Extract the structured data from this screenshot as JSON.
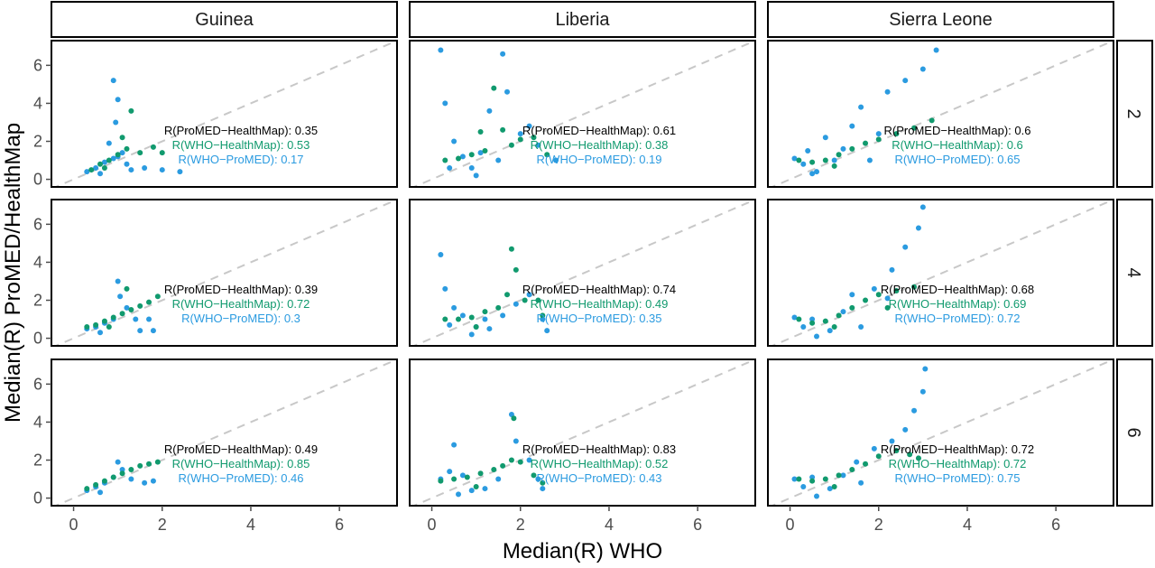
{
  "colors": {
    "who_promed": "#2b9be0",
    "who_healthmap": "#119a6e",
    "promed_healthmap": "#000000",
    "identity": "#c8c8c8",
    "panel_border": "#000000",
    "tick": "#4d4d4d"
  },
  "chart_data": {
    "type": "scatter",
    "title": "",
    "xlabel": "Median(R) WHO",
    "ylabel": "Median(R) ProMED/HealthMap",
    "xlim": [
      -0.5,
      7.3
    ],
    "ylim": [
      -0.4,
      7.3
    ],
    "xticks": [
      0,
      2,
      4,
      6
    ],
    "yticks": [
      0,
      2,
      4,
      6
    ],
    "grid": false,
    "reference_line": "y = x (dashed)",
    "columns": [
      "Guinea",
      "Liberia",
      "Sierra Leone"
    ],
    "rows": [
      "2",
      "4",
      "6"
    ],
    "panels": [
      {
        "country": "Guinea",
        "window": "2",
        "r_promed_healthmap": "0.35",
        "r_who_healthmap": "0.53",
        "r_who_promed": "0.17",
        "points_blue": [
          [
            0.3,
            0.4
          ],
          [
            0.5,
            0.6
          ],
          [
            0.7,
            0.9
          ],
          [
            0.9,
            1.1
          ],
          [
            1.0,
            1.2
          ],
          [
            1.1,
            1.4
          ],
          [
            0.9,
            5.2
          ],
          [
            0.95,
            3.0
          ],
          [
            1.2,
            0.8
          ],
          [
            1.6,
            0.6
          ],
          [
            2.0,
            0.5
          ],
          [
            2.4,
            0.4
          ],
          [
            0.6,
            0.3
          ],
          [
            1.3,
            0.5
          ],
          [
            0.8,
            1.9
          ],
          [
            1.0,
            4.2
          ]
        ],
        "points_green": [
          [
            0.4,
            0.5
          ],
          [
            0.6,
            0.8
          ],
          [
            0.8,
            1.0
          ],
          [
            1.0,
            1.3
          ],
          [
            1.2,
            1.6
          ],
          [
            1.3,
            3.6
          ],
          [
            1.5,
            1.4
          ],
          [
            1.8,
            1.7
          ],
          [
            2.0,
            1.4
          ],
          [
            0.7,
            0.6
          ],
          [
            1.1,
            2.2
          ]
        ]
      },
      {
        "country": "Liberia",
        "window": "2",
        "r_promed_healthmap": "0.61",
        "r_who_healthmap": "0.38",
        "r_who_promed": "0.19",
        "points_blue": [
          [
            0.2,
            6.8
          ],
          [
            0.3,
            4.0
          ],
          [
            0.5,
            2.0
          ],
          [
            0.7,
            1.2
          ],
          [
            0.9,
            0.6
          ],
          [
            1.1,
            1.4
          ],
          [
            1.3,
            3.6
          ],
          [
            1.6,
            6.6
          ],
          [
            1.7,
            4.6
          ],
          [
            2.0,
            2.4
          ],
          [
            2.4,
            1.8
          ],
          [
            2.8,
            1.0
          ],
          [
            0.4,
            0.6
          ],
          [
            1.0,
            0.2
          ],
          [
            1.5,
            1.0
          ],
          [
            2.2,
            2.8
          ]
        ],
        "points_green": [
          [
            0.3,
            1.0
          ],
          [
            0.6,
            1.1
          ],
          [
            0.9,
            1.3
          ],
          [
            1.2,
            1.5
          ],
          [
            1.4,
            4.8
          ],
          [
            1.6,
            2.6
          ],
          [
            1.8,
            1.8
          ],
          [
            2.0,
            2.1
          ],
          [
            2.3,
            2.2
          ],
          [
            2.6,
            1.3
          ],
          [
            1.1,
            2.5
          ]
        ]
      },
      {
        "country": "Sierra Leone",
        "window": "2",
        "r_promed_healthmap": "0.6",
        "r_who_healthmap": "0.6",
        "r_who_promed": "0.65",
        "points_blue": [
          [
            0.1,
            1.1
          ],
          [
            0.3,
            0.8
          ],
          [
            0.6,
            0.4
          ],
          [
            0.8,
            2.2
          ],
          [
            1.0,
            1.0
          ],
          [
            1.2,
            1.6
          ],
          [
            1.4,
            2.8
          ],
          [
            1.6,
            3.8
          ],
          [
            2.2,
            4.6
          ],
          [
            2.6,
            5.2
          ],
          [
            3.0,
            5.8
          ],
          [
            3.3,
            6.8
          ],
          [
            0.5,
            0.3
          ],
          [
            1.8,
            1.0
          ],
          [
            2.0,
            2.4
          ],
          [
            0.4,
            1.5
          ]
        ],
        "points_green": [
          [
            0.2,
            1.0
          ],
          [
            0.5,
            0.9
          ],
          [
            0.8,
            1.0
          ],
          [
            1.1,
            1.3
          ],
          [
            1.4,
            1.6
          ],
          [
            1.7,
            1.9
          ],
          [
            2.0,
            2.1
          ],
          [
            2.4,
            2.4
          ],
          [
            2.8,
            2.7
          ],
          [
            3.2,
            3.1
          ],
          [
            1.0,
            0.7
          ]
        ]
      },
      {
        "country": "Guinea",
        "window": "4",
        "r_promed_healthmap": "0.39",
        "r_who_healthmap": "0.72",
        "r_who_promed": "0.3",
        "points_blue": [
          [
            0.3,
            0.5
          ],
          [
            0.5,
            0.6
          ],
          [
            0.7,
            0.8
          ],
          [
            0.9,
            1.0
          ],
          [
            1.0,
            3.0
          ],
          [
            1.05,
            2.2
          ],
          [
            1.2,
            1.6
          ],
          [
            1.5,
            0.4
          ],
          [
            1.7,
            1.0
          ],
          [
            1.4,
            1.0
          ],
          [
            0.6,
            0.3
          ],
          [
            1.8,
            0.4
          ]
        ],
        "points_green": [
          [
            0.3,
            0.6
          ],
          [
            0.5,
            0.7
          ],
          [
            0.7,
            0.9
          ],
          [
            0.9,
            1.1
          ],
          [
            1.1,
            1.3
          ],
          [
            1.3,
            1.5
          ],
          [
            1.5,
            1.7
          ],
          [
            1.7,
            1.9
          ],
          [
            1.9,
            2.2
          ],
          [
            1.2,
            2.6
          ],
          [
            0.8,
            0.6
          ]
        ]
      },
      {
        "country": "Liberia",
        "window": "4",
        "r_promed_healthmap": "0.74",
        "r_who_healthmap": "0.49",
        "r_who_promed": "0.35",
        "points_blue": [
          [
            0.2,
            4.4
          ],
          [
            0.3,
            2.6
          ],
          [
            0.5,
            1.6
          ],
          [
            0.7,
            1.2
          ],
          [
            1.0,
            0.6
          ],
          [
            1.3,
            0.5
          ],
          [
            1.6,
            1.2
          ],
          [
            1.9,
            1.8
          ],
          [
            2.2,
            2.3
          ],
          [
            2.5,
            1.0
          ],
          [
            2.6,
            0.4
          ],
          [
            0.4,
            0.7
          ],
          [
            0.9,
            0.2
          ],
          [
            1.2,
            1.0
          ]
        ],
        "points_green": [
          [
            0.3,
            1.0
          ],
          [
            0.6,
            1.0
          ],
          [
            0.9,
            1.1
          ],
          [
            1.2,
            1.4
          ],
          [
            1.5,
            1.6
          ],
          [
            1.7,
            2.3
          ],
          [
            1.8,
            4.7
          ],
          [
            1.9,
            3.6
          ],
          [
            2.1,
            2.0
          ],
          [
            2.4,
            2.0
          ],
          [
            2.5,
            1.2
          ],
          [
            1.0,
            0.6
          ]
        ]
      },
      {
        "country": "Sierra Leone",
        "window": "4",
        "r_promed_healthmap": "0.68",
        "r_who_healthmap": "0.69",
        "r_who_promed": "0.72",
        "points_blue": [
          [
            0.1,
            1.1
          ],
          [
            0.3,
            0.6
          ],
          [
            0.6,
            0.1
          ],
          [
            0.9,
            0.4
          ],
          [
            1.2,
            1.4
          ],
          [
            1.4,
            2.3
          ],
          [
            1.9,
            2.6
          ],
          [
            2.3,
            3.6
          ],
          [
            2.6,
            4.8
          ],
          [
            2.9,
            5.8
          ],
          [
            3.0,
            6.9
          ],
          [
            2.2,
            2.1
          ],
          [
            1.6,
            0.6
          ],
          [
            0.5,
            1.0
          ]
        ],
        "points_green": [
          [
            0.2,
            1.0
          ],
          [
            0.5,
            0.8
          ],
          [
            0.8,
            0.9
          ],
          [
            1.1,
            1.2
          ],
          [
            1.4,
            1.6
          ],
          [
            1.7,
            2.0
          ],
          [
            2.0,
            2.3
          ],
          [
            2.4,
            2.5
          ],
          [
            2.8,
            2.7
          ],
          [
            1.0,
            0.6
          ],
          [
            2.2,
            1.6
          ]
        ]
      },
      {
        "country": "Guinea",
        "window": "6",
        "r_promed_healthmap": "0.49",
        "r_who_healthmap": "0.85",
        "r_who_promed": "0.46",
        "points_blue": [
          [
            0.3,
            0.4
          ],
          [
            0.5,
            0.6
          ],
          [
            0.7,
            0.8
          ],
          [
            0.9,
            1.1
          ],
          [
            1.0,
            1.9
          ],
          [
            1.1,
            1.5
          ],
          [
            1.3,
            1.0
          ],
          [
            1.6,
            0.8
          ],
          [
            1.8,
            0.9
          ],
          [
            0.6,
            0.3
          ]
        ],
        "points_green": [
          [
            0.3,
            0.5
          ],
          [
            0.5,
            0.7
          ],
          [
            0.7,
            0.9
          ],
          [
            0.9,
            1.1
          ],
          [
            1.1,
            1.3
          ],
          [
            1.3,
            1.5
          ],
          [
            1.5,
            1.7
          ],
          [
            1.7,
            1.8
          ],
          [
            1.9,
            1.9
          ]
        ]
      },
      {
        "country": "Liberia",
        "window": "6",
        "r_promed_healthmap": "0.83",
        "r_who_healthmap": "0.52",
        "r_who_promed": "0.43",
        "points_blue": [
          [
            0.2,
            1.0
          ],
          [
            0.4,
            1.4
          ],
          [
            0.5,
            2.8
          ],
          [
            0.7,
            1.2
          ],
          [
            0.9,
            0.4
          ],
          [
            1.2,
            0.5
          ],
          [
            1.5,
            1.0
          ],
          [
            1.8,
            4.4
          ],
          [
            1.9,
            3.0
          ],
          [
            2.2,
            2.0
          ],
          [
            2.4,
            1.0
          ],
          [
            2.5,
            0.5
          ],
          [
            0.6,
            0.2
          ]
        ],
        "points_green": [
          [
            0.2,
            0.9
          ],
          [
            0.5,
            1.0
          ],
          [
            0.8,
            1.1
          ],
          [
            1.1,
            1.3
          ],
          [
            1.4,
            1.5
          ],
          [
            1.6,
            1.7
          ],
          [
            1.8,
            2.0
          ],
          [
            1.85,
            4.2
          ],
          [
            2.0,
            1.9
          ],
          [
            2.3,
            1.2
          ],
          [
            2.5,
            0.8
          ],
          [
            1.0,
            0.6
          ]
        ]
      },
      {
        "country": "Sierra Leone",
        "window": "6",
        "r_promed_healthmap": "0.72",
        "r_who_healthmap": "0.72",
        "r_who_promed": "0.75",
        "points_blue": [
          [
            0.1,
            1.0
          ],
          [
            0.3,
            0.6
          ],
          [
            0.6,
            0.1
          ],
          [
            0.9,
            0.5
          ],
          [
            1.2,
            1.2
          ],
          [
            1.5,
            1.9
          ],
          [
            1.9,
            2.6
          ],
          [
            2.3,
            3.0
          ],
          [
            2.6,
            3.6
          ],
          [
            2.8,
            4.6
          ],
          [
            3.0,
            5.6
          ],
          [
            3.05,
            6.8
          ],
          [
            1.6,
            0.8
          ],
          [
            0.5,
            1.1
          ]
        ],
        "points_green": [
          [
            0.2,
            1.0
          ],
          [
            0.5,
            0.9
          ],
          [
            0.8,
            1.0
          ],
          [
            1.1,
            1.2
          ],
          [
            1.4,
            1.5
          ],
          [
            1.7,
            1.8
          ],
          [
            2.0,
            2.2
          ],
          [
            2.4,
            2.5
          ],
          [
            2.7,
            2.3
          ],
          [
            2.9,
            2.1
          ],
          [
            1.0,
            0.6
          ]
        ]
      }
    ]
  }
}
